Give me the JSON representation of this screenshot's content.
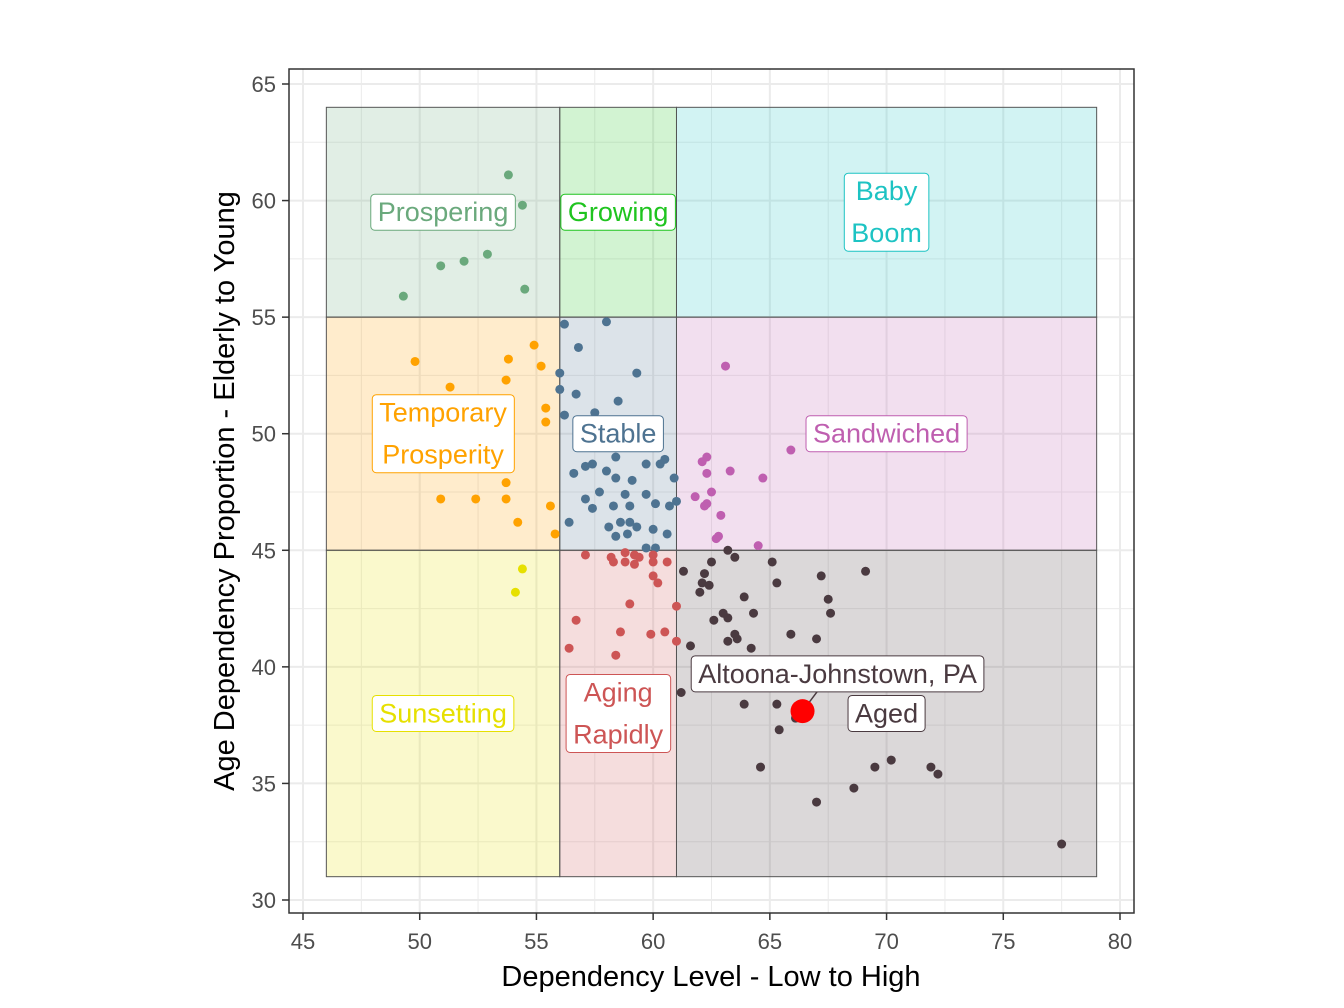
{
  "chart_data": {
    "type": "scatter",
    "title": "",
    "xlabel": "Dependency Level - Low to High",
    "ylabel": "Age Dependency Proportion - Elderly to Young",
    "xlim": [
      45,
      80
    ],
    "ylim": [
      30,
      65
    ],
    "xticks": [
      45,
      50,
      55,
      60,
      65,
      70,
      75,
      80
    ],
    "yticks": [
      30,
      35,
      40,
      45,
      50,
      55,
      60,
      65
    ],
    "grid": true,
    "legend": "none",
    "regions": [
      {
        "name": "Prospering",
        "label": [
          "Prospering"
        ],
        "x": [
          46,
          56
        ],
        "y": [
          55,
          64
        ],
        "color": "#6aa97c",
        "label_at": [
          51,
          59.5
        ]
      },
      {
        "name": "Growing",
        "label": [
          "Growing"
        ],
        "x": [
          56,
          61
        ],
        "y": [
          55,
          64
        ],
        "color": "#1fc41f",
        "label_at": [
          58.5,
          59.5
        ]
      },
      {
        "name": "Baby Boom",
        "label": [
          "Baby",
          "Boom"
        ],
        "x": [
          61,
          79
        ],
        "y": [
          55,
          64
        ],
        "color": "#1dc3c3",
        "label_at": [
          70,
          59.5
        ]
      },
      {
        "name": "Temporary Prosperity",
        "label": [
          "Temporary",
          "Prosperity"
        ],
        "x": [
          46,
          56
        ],
        "y": [
          45,
          55
        ],
        "color": "#ffa200",
        "label_at": [
          51,
          50
        ]
      },
      {
        "name": "Stable",
        "label": [
          "Stable"
        ],
        "x": [
          56,
          61
        ],
        "y": [
          45,
          55
        ],
        "color": "#4e7391",
        "label_at": [
          58.5,
          50
        ]
      },
      {
        "name": "Sandwiched",
        "label": [
          "Sandwiched"
        ],
        "x": [
          61,
          79
        ],
        "y": [
          45,
          55
        ],
        "color": "#bf5fb0",
        "label_at": [
          70,
          50
        ]
      },
      {
        "name": "Sunsetting",
        "label": [
          "Sunsetting"
        ],
        "x": [
          46,
          56
        ],
        "y": [
          31,
          45
        ],
        "color": "#e6e000",
        "label_at": [
          51,
          38
        ]
      },
      {
        "name": "Aging Rapidly",
        "label": [
          "Aging",
          "Rapidly"
        ],
        "x": [
          56,
          61
        ],
        "y": [
          31,
          45
        ],
        "color": "#cd5555",
        "label_at": [
          58.5,
          38
        ]
      },
      {
        "name": "Aged",
        "label": [
          "Aged"
        ],
        "x": [
          61,
          79
        ],
        "y": [
          31,
          45
        ],
        "color": "#4a3a40",
        "label_at": [
          70,
          38
        ]
      }
    ],
    "points": {
      "Prospering": [
        [
          53.8,
          61.1
        ],
        [
          54.4,
          59.8
        ],
        [
          50.9,
          57.2
        ],
        [
          51.9,
          57.4
        ],
        [
          52.9,
          57.7
        ],
        [
          54.5,
          56.2
        ],
        [
          49.3,
          55.9
        ]
      ],
      "Temporary Prosperity": [
        [
          49.8,
          53.1
        ],
        [
          51.3,
          52.0
        ],
        [
          53.8,
          53.2
        ],
        [
          54.9,
          53.8
        ],
        [
          55.2,
          52.9
        ],
        [
          53.7,
          52.3
        ],
        [
          55.4,
          51.1
        ],
        [
          55.4,
          50.5
        ],
        [
          50.9,
          47.2
        ],
        [
          52.4,
          47.2
        ],
        [
          53.7,
          47.9
        ],
        [
          53.7,
          47.2
        ],
        [
          55.6,
          46.9
        ],
        [
          54.2,
          46.2
        ],
        [
          55.8,
          45.7
        ]
      ],
      "Sunsetting": [
        [
          54.4,
          44.2
        ],
        [
          54.1,
          43.2
        ]
      ],
      "Stable": [
        [
          56.2,
          54.7
        ],
        [
          58.0,
          54.8
        ],
        [
          56.8,
          53.7
        ],
        [
          59.3,
          52.6
        ],
        [
          56.0,
          52.6
        ],
        [
          56.0,
          51.9
        ],
        [
          56.7,
          51.7
        ],
        [
          58.5,
          51.4
        ],
        [
          57.5,
          50.9
        ],
        [
          56.2,
          50.8
        ],
        [
          58.4,
          49.0
        ],
        [
          60.5,
          48.9
        ],
        [
          60.3,
          48.7
        ],
        [
          59.7,
          48.7
        ],
        [
          57.1,
          48.6
        ],
        [
          57.4,
          48.7
        ],
        [
          58.0,
          48.4
        ],
        [
          56.6,
          48.3
        ],
        [
          58.4,
          48.1
        ],
        [
          60.9,
          48.1
        ],
        [
          59.1,
          48.0
        ],
        [
          57.7,
          47.5
        ],
        [
          59.7,
          47.4
        ],
        [
          58.8,
          47.4
        ],
        [
          57.1,
          47.2
        ],
        [
          57.4,
          46.8
        ],
        [
          58.3,
          46.9
        ],
        [
          59.0,
          46.9
        ],
        [
          60.1,
          47.0
        ],
        [
          60.7,
          46.9
        ],
        [
          61.0,
          47.1
        ],
        [
          56.4,
          46.2
        ],
        [
          58.1,
          46.0
        ],
        [
          58.6,
          46.2
        ],
        [
          59.0,
          46.2
        ],
        [
          59.3,
          46.0
        ],
        [
          58.4,
          45.6
        ],
        [
          58.9,
          45.7
        ],
        [
          60.0,
          45.9
        ],
        [
          60.6,
          45.7
        ],
        [
          59.7,
          45.1
        ],
        [
          60.1,
          45.1
        ]
      ],
      "Sandwiched": [
        [
          63.1,
          52.9
        ],
        [
          65.9,
          49.3
        ],
        [
          62.3,
          49.0
        ],
        [
          62.1,
          48.8
        ],
        [
          62.3,
          48.3
        ],
        [
          63.3,
          48.4
        ],
        [
          64.7,
          48.1
        ],
        [
          61.8,
          47.3
        ],
        [
          62.5,
          47.5
        ],
        [
          62.3,
          47.0
        ],
        [
          62.2,
          46.9
        ],
        [
          62.9,
          46.5
        ],
        [
          62.8,
          45.6
        ],
        [
          64.5,
          45.2
        ],
        [
          62.7,
          45.5
        ]
      ],
      "Aging Rapidly": [
        [
          57.1,
          44.8
        ],
        [
          58.2,
          44.7
        ],
        [
          58.3,
          44.5
        ],
        [
          58.8,
          44.9
        ],
        [
          58.8,
          44.5
        ],
        [
          59.2,
          44.8
        ],
        [
          59.2,
          44.4
        ],
        [
          59.4,
          44.7
        ],
        [
          60.0,
          44.8
        ],
        [
          60.0,
          44.5
        ],
        [
          60.6,
          44.5
        ],
        [
          60.0,
          43.9
        ],
        [
          60.2,
          43.6
        ],
        [
          59.0,
          42.7
        ],
        [
          61.0,
          42.6
        ],
        [
          56.7,
          42.0
        ],
        [
          58.6,
          41.5
        ],
        [
          59.9,
          41.4
        ],
        [
          60.5,
          41.5
        ],
        [
          61.0,
          41.1
        ],
        [
          56.4,
          40.8
        ],
        [
          58.4,
          40.5
        ]
      ],
      "Aged": [
        [
          61.3,
          44.1
        ],
        [
          62.2,
          44.0
        ],
        [
          62.5,
          44.5
        ],
        [
          63.2,
          45.0
        ],
        [
          63.5,
          44.7
        ],
        [
          65.1,
          44.5
        ],
        [
          65.3,
          43.6
        ],
        [
          62.1,
          43.6
        ],
        [
          62.4,
          43.5
        ],
        [
          62.0,
          43.2
        ],
        [
          63.9,
          43.0
        ],
        [
          64.3,
          42.3
        ],
        [
          62.6,
          42.0
        ],
        [
          63.0,
          42.3
        ],
        [
          63.2,
          42.1
        ],
        [
          63.5,
          41.4
        ],
        [
          63.6,
          41.2
        ],
        [
          63.2,
          41.1
        ],
        [
          64.2,
          40.8
        ],
        [
          61.6,
          40.9
        ],
        [
          65.9,
          41.4
        ],
        [
          67.0,
          41.2
        ],
        [
          67.2,
          43.9
        ],
        [
          67.5,
          42.9
        ],
        [
          67.6,
          42.3
        ],
        [
          69.1,
          44.1
        ],
        [
          61.2,
          38.9
        ],
        [
          63.9,
          38.4
        ],
        [
          65.3,
          38.4
        ],
        [
          66.1,
          37.8
        ],
        [
          65.4,
          37.3
        ],
        [
          64.6,
          35.7
        ],
        [
          69.5,
          35.7
        ],
        [
          70.2,
          36.0
        ],
        [
          71.9,
          35.7
        ],
        [
          72.2,
          35.4
        ],
        [
          68.6,
          34.8
        ],
        [
          67.0,
          34.2
        ],
        [
          77.5,
          32.4
        ]
      ]
    },
    "highlight": {
      "label": "Altoona-Johnstown, PA",
      "x": 66.4,
      "y": 38.1,
      "color": "#ff0000",
      "label_at": [
        67.9,
        39.7
      ],
      "label_color": "#4a3a40"
    }
  }
}
